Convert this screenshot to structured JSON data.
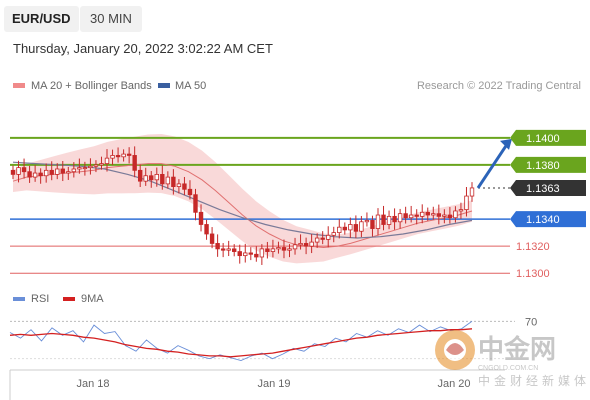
{
  "header": {
    "symbol": "EUR/USD",
    "timeframe": "30 MIN",
    "datetime": "Thursday, January 20, 2022 3:02:22 AM CET"
  },
  "legend": {
    "items": [
      {
        "label": "MA 20 + Bollinger Bands",
        "color": "#f08a8a"
      },
      {
        "label": "MA 50",
        "color": "#3a5fa0"
      }
    ],
    "credit": "Research © 2022 Trading Central"
  },
  "rsi_legend": {
    "items": [
      {
        "label": "RSI",
        "color": "#6a8fd8"
      },
      {
        "label": "9MA",
        "color": "#d42020"
      }
    ]
  },
  "watermark": {
    "name": "中金网",
    "url": "CNGOLD.COM.CN",
    "slogan": "中金财经新媒体"
  },
  "colors": {
    "resistance": "#6aa51e",
    "support": "#2f6fd6",
    "level_red": "#e06060",
    "current": "#333333",
    "arrow": "#2b63b8",
    "bollinger": "#f7cfcf",
    "ma20": "#e07070",
    "ma50": "#7a7a98",
    "candle": "#c62828"
  },
  "chart_data": [
    {
      "type": "candlestick",
      "title": "EUR/USD 30 MIN",
      "y_min": 1.1295,
      "y_max": 1.1425,
      "x_ticks": [
        "Jan 18",
        "Jan 19",
        "Jan 20"
      ],
      "levels": [
        {
          "value": 1.14,
          "label": "1.1400",
          "role": "resistance"
        },
        {
          "value": 1.138,
          "label": "1.1380",
          "role": "resistance"
        },
        {
          "value": 1.1363,
          "label": "1.1363",
          "role": "current"
        },
        {
          "value": 1.134,
          "label": "1.1340",
          "role": "support"
        },
        {
          "value": 1.132,
          "label": "1.1320",
          "role": "level"
        },
        {
          "value": 1.13,
          "label": "1.1300",
          "role": "level"
        }
      ],
      "close_series": [
        1.1373,
        1.1378,
        1.1375,
        1.1371,
        1.1374,
        1.1372,
        1.1376,
        1.1373,
        1.1377,
        1.1374,
        1.1375,
        1.1377,
        1.1378,
        1.1378,
        1.1379,
        1.138,
        1.1381,
        1.1385,
        1.1387,
        1.1386,
        1.1388,
        1.1387,
        1.1376,
        1.1368,
        1.1372,
        1.1369,
        1.1373,
        1.1366,
        1.1371,
        1.1364,
        1.1366,
        1.1362,
        1.1358,
        1.1345,
        1.1336,
        1.1329,
        1.1322,
        1.1318,
        1.1317,
        1.1318,
        1.1316,
        1.1313,
        1.1315,
        1.1314,
        1.1312,
        1.1318,
        1.1316,
        1.1318,
        1.1319,
        1.1317,
        1.1318,
        1.1321,
        1.1322,
        1.132,
        1.1323,
        1.1326,
        1.1325,
        1.1328,
        1.133,
        1.1334,
        1.1332,
        1.1336,
        1.1331,
        1.1338,
        1.1339,
        1.1333,
        1.1343,
        1.1336,
        1.1342,
        1.1338,
        1.1344,
        1.1341,
        1.1343,
        1.1342,
        1.1345,
        1.1343,
        1.1344,
        1.1342,
        1.1343,
        1.1341,
        1.1346,
        1.1347,
        1.1357,
        1.1363
      ],
      "ma20": [
        1.1368,
        1.1371,
        1.1372,
        1.1373,
        1.1374,
        1.1375,
        1.1376,
        1.1378,
        1.1379,
        1.138,
        1.1381,
        1.1381,
        1.1379,
        1.1375,
        1.1369,
        1.1361,
        1.1352,
        1.1343,
        1.1335,
        1.1329,
        1.1324,
        1.1321,
        1.132,
        1.1319,
        1.132,
        1.1322,
        1.1325,
        1.1328,
        1.1331,
        1.1334,
        1.1337,
        1.1339,
        1.1341,
        1.1343,
        1.1346
      ],
      "ma50": [
        1.1382,
        1.1381,
        1.138,
        1.1379,
        1.1377,
        1.1373,
        1.1368,
        1.1361,
        1.1354,
        1.1347,
        1.1341,
        1.1336,
        1.1332,
        1.1329,
        1.1327,
        1.1326,
        1.1327,
        1.1329,
        1.1332,
        1.1336,
        1.1339
      ],
      "forecast_target": 1.14
    },
    {
      "type": "line",
      "title": "RSI",
      "level": {
        "value": 70,
        "label": "70"
      },
      "series": [
        {
          "name": "RSI",
          "values": [
            58,
            52,
            61,
            49,
            63,
            55,
            60,
            48,
            66,
            57,
            59,
            44,
            38,
            50,
            41,
            36,
            44,
            39,
            33,
            30,
            34,
            31,
            28,
            33,
            36,
            30,
            35,
            41,
            38,
            46,
            43,
            52,
            48,
            57,
            53,
            60,
            55,
            62,
            58,
            66,
            59,
            64,
            60,
            62,
            70
          ]
        },
        {
          "name": "9MA",
          "values": [
            55,
            56,
            55,
            56,
            57,
            56,
            55,
            53,
            52,
            50,
            48,
            45,
            43,
            41,
            40,
            38,
            37,
            35,
            34,
            33,
            33,
            32,
            33,
            34,
            35,
            36,
            38,
            40,
            42,
            44,
            46,
            48,
            50,
            52,
            53,
            55,
            56,
            57,
            58,
            59,
            60,
            60,
            61,
            61,
            62
          ]
        }
      ]
    }
  ]
}
